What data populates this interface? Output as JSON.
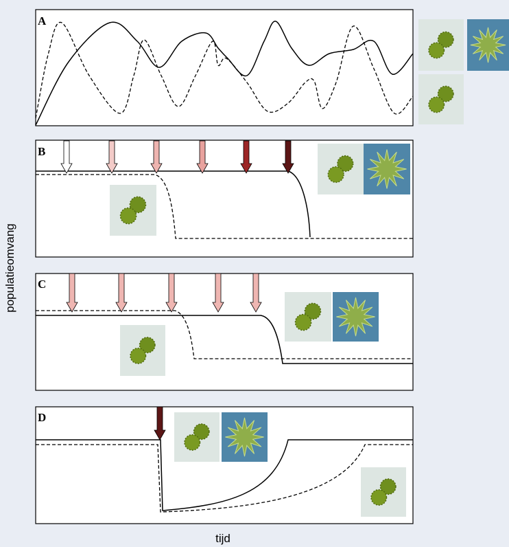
{
  "panels": [
    {
      "label": "A"
    },
    {
      "label": "B"
    },
    {
      "label": "C"
    },
    {
      "label": "D"
    }
  ],
  "y_axis_label": "populatieomvang",
  "x_axis_label": "tijd"
}
